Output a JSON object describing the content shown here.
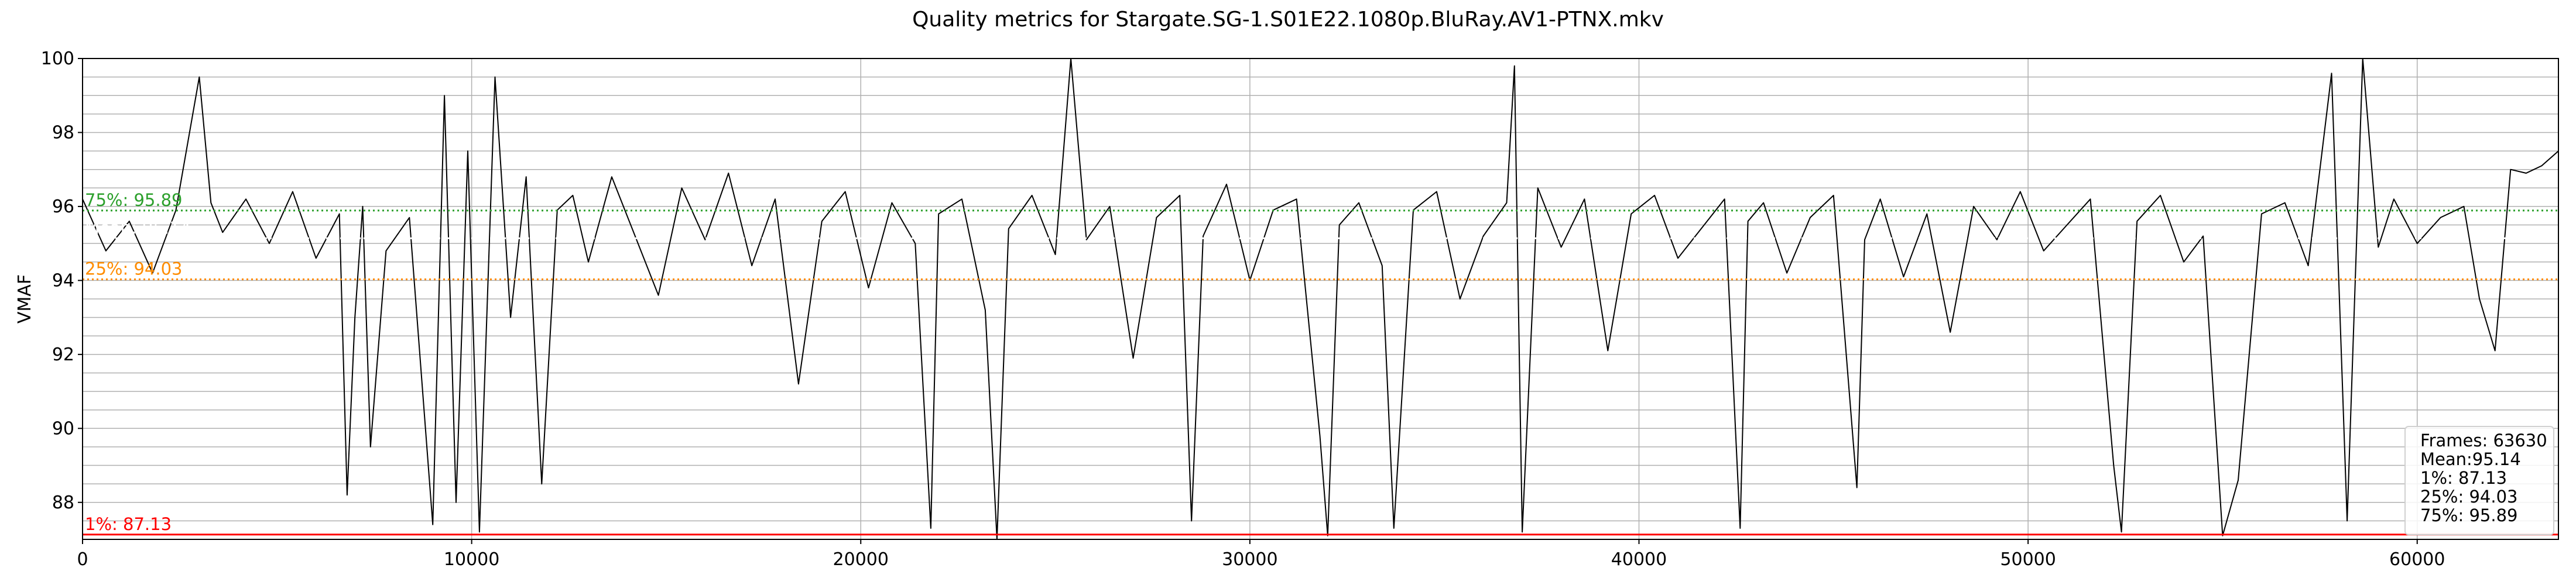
{
  "chart_data": {
    "type": "line",
    "title": "Quality metrics for Stargate.SG-1.S01E22.1080p.BluRay.AV1-PTNX.mkv",
    "xlabel": "",
    "ylabel": "VMAF",
    "xlim": [
      0,
      63630
    ],
    "ylim": [
      87,
      100
    ],
    "x_ticks": [
      0,
      10000,
      20000,
      30000,
      40000,
      50000,
      60000
    ],
    "y_ticks": [
      88,
      90,
      92,
      94,
      96,
      98,
      100
    ],
    "grid": true,
    "series": [
      {
        "color": "#000000",
        "x": [
          0,
          600,
          1200,
          1800,
          2400,
          3000,
          3300,
          3600,
          4200,
          4800,
          5400,
          6000,
          6600,
          6800,
          7000,
          7200,
          7400,
          7800,
          8400,
          9000,
          9300,
          9600,
          9900,
          10200,
          10600,
          11000,
          11400,
          11800,
          12200,
          12600,
          13000,
          13600,
          14200,
          14800,
          15400,
          16000,
          16600,
          17200,
          17800,
          18400,
          19000,
          19600,
          20200,
          20800,
          21400,
          21800,
          22000,
          22600,
          23200,
          23500,
          23800,
          24400,
          25000,
          25400,
          25800,
          26400,
          27000,
          27600,
          28200,
          28500,
          28800,
          29400,
          30000,
          30600,
          31200,
          31800,
          32000,
          32300,
          32800,
          33400,
          33700,
          34200,
          34800,
          35400,
          36000,
          36600,
          36800,
          37000,
          37400,
          38000,
          38600,
          39200,
          39800,
          40400,
          41000,
          41600,
          42200,
          42600,
          42800,
          43200,
          43800,
          44400,
          45000,
          45600,
          45800,
          46200,
          46800,
          47400,
          48000,
          48600,
          49200,
          49800,
          50400,
          51000,
          51600,
          52200,
          52400,
          52800,
          53400,
          54000,
          54500,
          55000,
          55400,
          56000,
          56600,
          57200,
          57800,
          58200,
          58600,
          59000,
          59400,
          60000,
          60600,
          61200,
          61600,
          62000,
          62400,
          62800,
          63200,
          63630
        ],
        "y": [
          96.2,
          94.8,
          95.6,
          94.2,
          95.9,
          99.5,
          96.1,
          95.3,
          96.2,
          95.0,
          96.4,
          94.6,
          95.8,
          88.2,
          93.0,
          96.0,
          89.5,
          94.8,
          95.7,
          87.4,
          99.0,
          88.0,
          97.5,
          87.2,
          99.5,
          93.0,
          96.8,
          88.5,
          95.9,
          96.3,
          94.5,
          96.8,
          95.2,
          93.6,
          96.5,
          95.1,
          96.9,
          94.4,
          96.2,
          91.2,
          95.6,
          96.4,
          93.8,
          96.1,
          95.0,
          87.3,
          95.8,
          96.2,
          93.2,
          87.0,
          95.4,
          96.3,
          94.7,
          100.0,
          95.1,
          96.0,
          91.9,
          95.7,
          96.3,
          87.5,
          95.2,
          96.6,
          94.0,
          95.9,
          96.2,
          89.8,
          87.1,
          95.5,
          96.1,
          94.4,
          87.3,
          95.9,
          96.4,
          93.5,
          95.2,
          96.1,
          99.8,
          87.2,
          96.5,
          94.9,
          96.2,
          92.1,
          95.8,
          96.3,
          94.6,
          95.4,
          96.2,
          87.3,
          95.6,
          96.1,
          94.2,
          95.7,
          96.3,
          88.4,
          95.1,
          96.2,
          94.1,
          95.8,
          92.6,
          96.0,
          95.1,
          96.4,
          94.8,
          95.5,
          96.2,
          89.0,
          87.2,
          95.6,
          96.3,
          94.5,
          95.2,
          87.1,
          88.6,
          95.8,
          96.1,
          94.4,
          99.6,
          87.5,
          100.0,
          94.9,
          96.2,
          95.0,
          95.7,
          96.0,
          93.5,
          92.1,
          97.0,
          96.9,
          97.1,
          97.5
        ]
      }
    ],
    "reference_lines": [
      {
        "label": "75%: 95.89",
        "value": 95.89,
        "color": "#2ca02c",
        "style": "dotted"
      },
      {
        "label": "Mean: 95.14",
        "value": 95.14,
        "color": "#ffffff",
        "style": "dotted"
      },
      {
        "label": "25%: 94.03",
        "value": 94.03,
        "color": "#ff8c00",
        "style": "dotted"
      },
      {
        "label": "1%: 87.13",
        "value": 87.13,
        "color": "#ff0000",
        "style": "solid"
      }
    ],
    "stats_box": [
      "Frames: 63630",
      "Mean:95.14",
      "1%: 87.13",
      "25%: 94.03",
      "75%: 95.89"
    ]
  }
}
